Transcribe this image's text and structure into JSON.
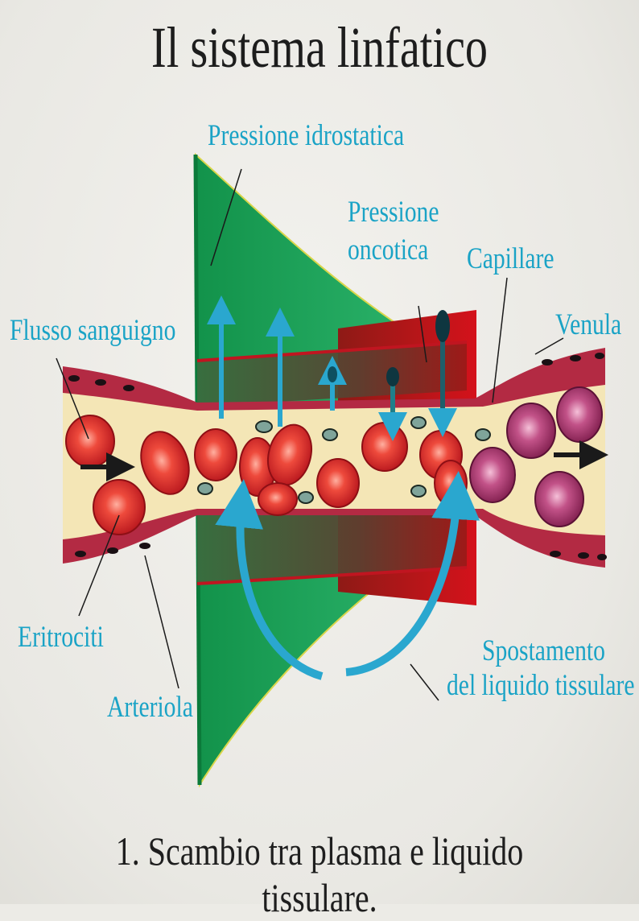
{
  "title": "Il sistema linfatico",
  "caption": "1. Scambio tra plasma e liquido tissulare.",
  "labels": {
    "pressione_idrostatica": "Pressione idrostatica",
    "pressione_oncotica_line1": "Pressione",
    "pressione_oncotica_line2": "oncotica",
    "capillare": "Capillare",
    "venula": "Venula",
    "flusso_sanguigno": "Flusso sanguigno",
    "eritrociti": "Eritrociti",
    "arteriola": "Arteriola",
    "spostamento_line1": "Spostamento",
    "spostamento_line2": "del liquido tissulare"
  },
  "colors": {
    "label": "#1aa3c6",
    "hydrostatic": "#1f9a4e",
    "oncotic": "#c8121b",
    "vessel_wall": "#b0203a",
    "plasma": "#f4e6b6",
    "erythrocyte": "#d9262b",
    "venous_cell": "#a63a6e",
    "arrow": "#2aa7cf"
  }
}
